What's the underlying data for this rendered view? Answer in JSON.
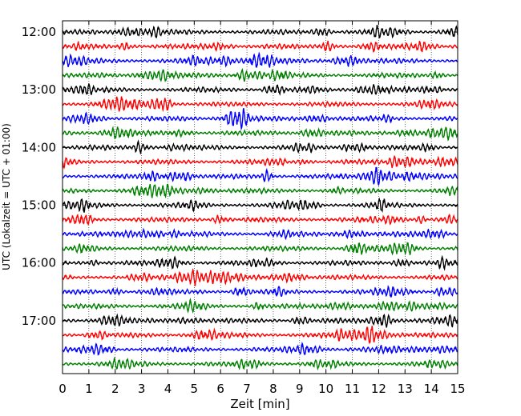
{
  "chart_data": {
    "type": "line",
    "title": "",
    "xlabel": "Zeit  [min]",
    "ylabel": "UTC (Lokalzeit = UTC + 01:00)",
    "xlim": [
      0,
      15
    ],
    "x_ticks": [
      0,
      1,
      2,
      3,
      4,
      5,
      6,
      7,
      8,
      9,
      10,
      11,
      12,
      13,
      14,
      15
    ],
    "x_tick_labels": [
      "0",
      "1",
      "2",
      "3",
      "4",
      "5",
      "6",
      "7",
      "8",
      "9",
      "10",
      "11",
      "12",
      "13",
      "14",
      "15"
    ],
    "y_ticks": [
      "12:00",
      "13:00",
      "14:00",
      "15:00",
      "16:00",
      "17:00"
    ],
    "grid": "vertical dotted",
    "trace_start_times": [
      "12:00",
      "12:15",
      "12:30",
      "12:45",
      "13:00",
      "13:15",
      "13:30",
      "13:45",
      "14:00",
      "14:15",
      "14:30",
      "14:45",
      "15:00",
      "15:15",
      "15:30",
      "15:45",
      "16:00",
      "16:15",
      "16:30",
      "16:45",
      "17:00",
      "17:15",
      "17:30",
      "17:45"
    ],
    "trace_colors": [
      "#000000",
      "#ff0000",
      "#0000ff",
      "#008000"
    ]
  }
}
